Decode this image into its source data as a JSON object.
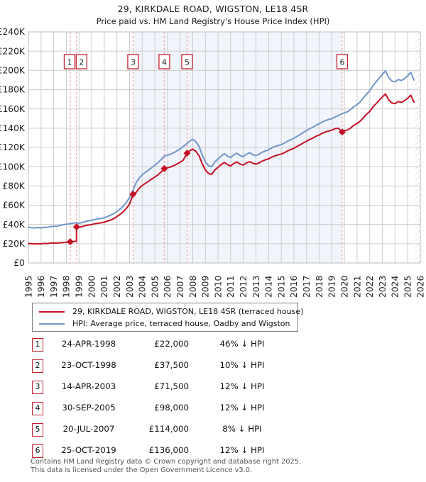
{
  "title": "29, KIRKDALE ROAD, WIGSTON, LE18 4SR",
  "subtitle": "Price paid vs. HM Land Registry's House Price Index (HPI)",
  "legend": {
    "property_label": "29, KIRKDALE ROAD, WIGSTON, LE18 4SR (terraced house)",
    "hpi_label": "HPI: Average price, terraced house, Oadby and Wigston"
  },
  "colors": {
    "property_line": "#c50f22",
    "hpi_line": "#7096c8",
    "sale_dashed_line": "#f59898",
    "shade": "#f1f4fb",
    "grid": "#cccccc",
    "plot_border": "#bbbbbb",
    "hatch": "#c9c9c9",
    "marker_box_border": "#c22330",
    "tick_text": "#222222"
  },
  "axes": {
    "y_tick_labels": [
      "£0",
      "£20K",
      "£40K",
      "£60K",
      "£80K",
      "£100K",
      "£120K",
      "£140K",
      "£160K",
      "£180K",
      "£200K",
      "£220K",
      "£240K"
    ],
    "x_tick_labels": [
      "1995",
      "1996",
      "1997",
      "1998",
      "1999",
      "2000",
      "2001",
      "2002",
      "2003",
      "2004",
      "2005",
      "2006",
      "2007",
      "2008",
      "2009",
      "2010",
      "2011",
      "2012",
      "2013",
      "2014",
      "2015",
      "2016",
      "2017",
      "2018",
      "2019",
      "2020",
      "2021",
      "2022",
      "2023",
      "2024",
      "2025",
      "2026"
    ]
  },
  "chart_data": {
    "type": "line",
    "x_range": [
      1995,
      2026
    ],
    "y_range": [
      0,
      240000
    ],
    "ylabel_format": "£{K}K",
    "grid": true,
    "legend_position": "below",
    "shaded_region": [
      2003.28,
      2019.82
    ],
    "hatch_region": [
      2025.58,
      2026
    ],
    "series": [
      {
        "name": "HPI: Average price, terraced house, Oadby and Wigston",
        "color": "#7096c8",
        "points": [
          [
            1995.0,
            37200
          ],
          [
            1995.25,
            36600
          ],
          [
            1995.5,
            36200
          ],
          [
            1995.75,
            36900
          ],
          [
            1996.0,
            36400
          ],
          [
            1996.25,
            37200
          ],
          [
            1996.5,
            37000
          ],
          [
            1996.75,
            37800
          ],
          [
            1997.0,
            38200
          ],
          [
            1997.25,
            38000
          ],
          [
            1997.5,
            39000
          ],
          [
            1997.75,
            39600
          ],
          [
            1998.0,
            40200
          ],
          [
            1998.25,
            40600
          ],
          [
            1998.5,
            41300
          ],
          [
            1998.75,
            41700
          ],
          [
            1999.0,
            41200
          ],
          [
            1999.25,
            42000
          ],
          [
            1999.5,
            43000
          ],
          [
            1999.75,
            43800
          ],
          [
            2000.0,
            44300
          ],
          [
            2000.25,
            45200
          ],
          [
            2000.5,
            45800
          ],
          [
            2000.75,
            46300
          ],
          [
            2001.0,
            47000
          ],
          [
            2001.25,
            48200
          ],
          [
            2001.5,
            49600
          ],
          [
            2001.75,
            51200
          ],
          [
            2002.0,
            53500
          ],
          [
            2002.25,
            56000
          ],
          [
            2002.5,
            59000
          ],
          [
            2002.75,
            63000
          ],
          [
            2003.0,
            68000
          ],
          [
            2003.25,
            75000
          ],
          [
            2003.5,
            83000
          ],
          [
            2003.75,
            88000
          ],
          [
            2004.0,
            91500
          ],
          [
            2004.25,
            94000
          ],
          [
            2004.5,
            96500
          ],
          [
            2004.75,
            99000
          ],
          [
            2005.0,
            101500
          ],
          [
            2005.25,
            104000
          ],
          [
            2005.5,
            107500
          ],
          [
            2005.75,
            111000
          ],
          [
            2006.0,
            112000
          ],
          [
            2006.25,
            113000
          ],
          [
            2006.5,
            114500
          ],
          [
            2006.75,
            116500
          ],
          [
            2007.0,
            118500
          ],
          [
            2007.25,
            121000
          ],
          [
            2007.5,
            123500
          ],
          [
            2007.75,
            126500
          ],
          [
            2008.0,
            128500
          ],
          [
            2008.25,
            126000
          ],
          [
            2008.5,
            121000
          ],
          [
            2008.75,
            112000
          ],
          [
            2009.0,
            105000
          ],
          [
            2009.25,
            101000
          ],
          [
            2009.5,
            100000
          ],
          [
            2009.75,
            105000
          ],
          [
            2010.0,
            108000
          ],
          [
            2010.25,
            111000
          ],
          [
            2010.5,
            113500
          ],
          [
            2010.75,
            111000
          ],
          [
            2011.0,
            109500
          ],
          [
            2011.25,
            112500
          ],
          [
            2011.5,
            114000
          ],
          [
            2011.75,
            111500
          ],
          [
            2012.0,
            110500
          ],
          [
            2012.25,
            113000
          ],
          [
            2012.5,
            114500
          ],
          [
            2012.75,
            112500
          ],
          [
            2013.0,
            111500
          ],
          [
            2013.25,
            113000
          ],
          [
            2013.5,
            115000
          ],
          [
            2013.75,
            116500
          ],
          [
            2014.0,
            117500
          ],
          [
            2014.25,
            119500
          ],
          [
            2014.5,
            121000
          ],
          [
            2014.75,
            122000
          ],
          [
            2015.0,
            123000
          ],
          [
            2015.25,
            124500
          ],
          [
            2015.5,
            126500
          ],
          [
            2015.75,
            128000
          ],
          [
            2016.0,
            129500
          ],
          [
            2016.25,
            131500
          ],
          [
            2016.5,
            133500
          ],
          [
            2016.75,
            135500
          ],
          [
            2017.0,
            137500
          ],
          [
            2017.25,
            139500
          ],
          [
            2017.5,
            141000
          ],
          [
            2017.75,
            143000
          ],
          [
            2018.0,
            144500
          ],
          [
            2018.25,
            146500
          ],
          [
            2018.5,
            148000
          ],
          [
            2018.75,
            149000
          ],
          [
            2019.0,
            150000
          ],
          [
            2019.25,
            151500
          ],
          [
            2019.5,
            153000
          ],
          [
            2019.75,
            154500
          ],
          [
            2020.0,
            156000
          ],
          [
            2020.25,
            157000
          ],
          [
            2020.5,
            159500
          ],
          [
            2020.75,
            162500
          ],
          [
            2021.0,
            164500
          ],
          [
            2021.25,
            167500
          ],
          [
            2021.5,
            171500
          ],
          [
            2021.75,
            175500
          ],
          [
            2022.0,
            179000
          ],
          [
            2022.25,
            184000
          ],
          [
            2022.5,
            188000
          ],
          [
            2022.75,
            192000
          ],
          [
            2023.0,
            196000
          ],
          [
            2023.25,
            199500
          ],
          [
            2023.5,
            192500
          ],
          [
            2023.75,
            189000
          ],
          [
            2024.0,
            188000
          ],
          [
            2024.25,
            190500
          ],
          [
            2024.5,
            189500
          ],
          [
            2024.75,
            191500
          ],
          [
            2025.0,
            194500
          ],
          [
            2025.25,
            198000
          ],
          [
            2025.5,
            190000
          ]
        ]
      },
      {
        "name": "29, KIRKDALE ROAD, WIGSTON, LE18 4SR (terraced house)",
        "color": "#c50f22",
        "points": [
          [
            1995.0,
            20200
          ],
          [
            1995.25,
            20000
          ],
          [
            1995.5,
            19800
          ],
          [
            1995.75,
            20100
          ],
          [
            1996.0,
            19900
          ],
          [
            1996.25,
            20300
          ],
          [
            1996.5,
            20200
          ],
          [
            1996.75,
            20600
          ],
          [
            1997.0,
            20800
          ],
          [
            1997.25,
            20700
          ],
          [
            1997.5,
            21000
          ],
          [
            1997.75,
            21300
          ],
          [
            1998.0,
            21600
          ],
          [
            1998.31,
            22000
          ],
          [
            1998.6,
            22300
          ],
          [
            1998.8,
            22500
          ],
          [
            1998.81,
            37500
          ],
          [
            1999.0,
            37100
          ],
          [
            1999.25,
            37800
          ],
          [
            1999.5,
            38700
          ],
          [
            1999.75,
            39400
          ],
          [
            2000.0,
            39900
          ],
          [
            2000.25,
            40700
          ],
          [
            2000.5,
            41200
          ],
          [
            2000.75,
            41700
          ],
          [
            2001.0,
            42300
          ],
          [
            2001.25,
            43400
          ],
          [
            2001.5,
            44600
          ],
          [
            2001.75,
            46100
          ],
          [
            2002.0,
            48200
          ],
          [
            2002.25,
            50400
          ],
          [
            2002.5,
            53100
          ],
          [
            2002.75,
            56700
          ],
          [
            2003.0,
            61200
          ],
          [
            2003.28,
            71500
          ],
          [
            2003.5,
            73000
          ],
          [
            2003.75,
            77400
          ],
          [
            2004.0,
            80500
          ],
          [
            2004.25,
            82700
          ],
          [
            2004.5,
            84900
          ],
          [
            2004.75,
            87100
          ],
          [
            2005.0,
            89300
          ],
          [
            2005.25,
            91500
          ],
          [
            2005.5,
            94600
          ],
          [
            2005.75,
            98000
          ],
          [
            2006.0,
            98900
          ],
          [
            2006.25,
            99700
          ],
          [
            2006.5,
            101100
          ],
          [
            2006.75,
            102800
          ],
          [
            2007.0,
            104600
          ],
          [
            2007.25,
            106800
          ],
          [
            2007.55,
            114000
          ],
          [
            2007.75,
            116400
          ],
          [
            2008.0,
            118200
          ],
          [
            2008.25,
            115900
          ],
          [
            2008.5,
            111300
          ],
          [
            2008.75,
            103000
          ],
          [
            2009.0,
            96600
          ],
          [
            2009.25,
            92900
          ],
          [
            2009.5,
            92000
          ],
          [
            2009.75,
            96600
          ],
          [
            2010.0,
            99400
          ],
          [
            2010.25,
            102100
          ],
          [
            2010.5,
            104400
          ],
          [
            2010.75,
            102100
          ],
          [
            2011.0,
            100700
          ],
          [
            2011.25,
            103500
          ],
          [
            2011.5,
            104900
          ],
          [
            2011.75,
            102600
          ],
          [
            2012.0,
            101700
          ],
          [
            2012.25,
            104000
          ],
          [
            2012.5,
            105300
          ],
          [
            2012.75,
            103500
          ],
          [
            2013.0,
            102600
          ],
          [
            2013.25,
            104000
          ],
          [
            2013.5,
            105800
          ],
          [
            2013.75,
            107200
          ],
          [
            2014.0,
            108100
          ],
          [
            2014.25,
            110000
          ],
          [
            2014.5,
            111300
          ],
          [
            2014.75,
            112200
          ],
          [
            2015.0,
            113200
          ],
          [
            2015.25,
            114500
          ],
          [
            2015.5,
            116400
          ],
          [
            2015.75,
            117800
          ],
          [
            2016.0,
            119100
          ],
          [
            2016.25,
            121000
          ],
          [
            2016.5,
            122800
          ],
          [
            2016.75,
            124700
          ],
          [
            2017.0,
            126500
          ],
          [
            2017.25,
            128300
          ],
          [
            2017.5,
            129700
          ],
          [
            2017.75,
            131600
          ],
          [
            2018.0,
            132900
          ],
          [
            2018.25,
            134800
          ],
          [
            2018.5,
            136200
          ],
          [
            2018.75,
            137100
          ],
          [
            2019.0,
            138000
          ],
          [
            2019.25,
            139400
          ],
          [
            2019.5,
            140000
          ],
          [
            2019.81,
            136000
          ],
          [
            2020.0,
            137500
          ],
          [
            2020.25,
            138200
          ],
          [
            2020.5,
            140400
          ],
          [
            2020.75,
            143000
          ],
          [
            2021.0,
            144800
          ],
          [
            2021.25,
            147400
          ],
          [
            2021.5,
            150900
          ],
          [
            2021.75,
            154500
          ],
          [
            2022.0,
            157500
          ],
          [
            2022.25,
            161900
          ],
          [
            2022.5,
            165400
          ],
          [
            2022.75,
            169000
          ],
          [
            2023.0,
            172500
          ],
          [
            2023.25,
            175500
          ],
          [
            2023.5,
            169400
          ],
          [
            2023.75,
            166300
          ],
          [
            2024.0,
            165400
          ],
          [
            2024.25,
            167600
          ],
          [
            2024.5,
            166800
          ],
          [
            2024.75,
            168500
          ],
          [
            2025.0,
            171200
          ],
          [
            2025.25,
            174200
          ],
          [
            2025.5,
            167200
          ]
        ]
      }
    ]
  },
  "sales": [
    {
      "num": "1",
      "date": "24-APR-1998",
      "price": "£22,000",
      "pct": "46% ↓ HPI",
      "year": 1998.31,
      "value": 22000
    },
    {
      "num": "2",
      "date": "23-OCT-1998",
      "price": "£37,500",
      "pct": "10% ↓ HPI",
      "year": 1998.81,
      "value": 37500
    },
    {
      "num": "3",
      "date": "14-APR-2003",
      "price": "£71,500",
      "pct": "12% ↓ HPI",
      "year": 2003.28,
      "value": 71500
    },
    {
      "num": "4",
      "date": "30-SEP-2005",
      "price": "£98,000",
      "pct": "12% ↓ HPI",
      "year": 2005.75,
      "value": 98000
    },
    {
      "num": "5",
      "date": "20-JUL-2007",
      "price": "£114,000",
      "pct": "8% ↓ HPI",
      "year": 2007.55,
      "value": 114000
    },
    {
      "num": "6",
      "date": "25-OCT-2019",
      "price": "£136,000",
      "pct": "12% ↓ HPI",
      "year": 2019.82,
      "value": 136000
    }
  ],
  "footer": {
    "line1": "Contains HM Land Registry data © Crown copyright and database right 2025.",
    "line2": "This data is licensed under the Open Government Licence v3.0."
  }
}
